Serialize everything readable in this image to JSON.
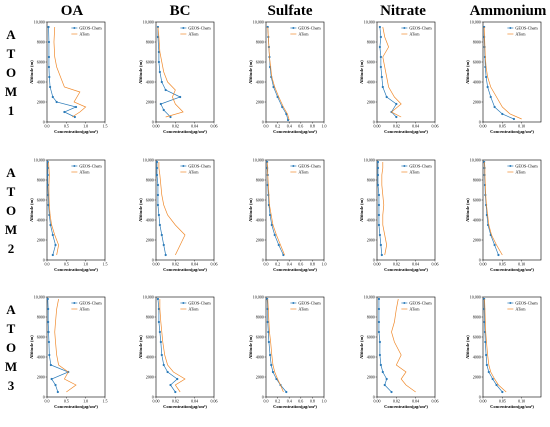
{
  "columns": [
    "OA",
    "BC",
    "Sulfate",
    "Nitrate",
    "Ammonium"
  ],
  "rows": [
    "ATOM1",
    "ATOM2",
    "ATOM3"
  ],
  "legend": [
    "GEOS-Chem",
    "ATom"
  ],
  "colors": {
    "GEOS-Chem": "#2b7bb9",
    "ATom": "#f08a2c"
  },
  "axis_text": {
    "xlabel": "Concentration(μg/sm³)",
    "ylabel": "Altitude (m)"
  },
  "chart_data": {
    "type": "line",
    "yticks": [
      "0",
      "2000",
      "4000",
      "6000",
      "8000",
      "10,000"
    ],
    "ylim": [
      0,
      10000
    ],
    "xticks": {
      "OA": [
        "0.0",
        "0.5",
        "1.0",
        "1.5"
      ],
      "BC": [
        "0.00",
        "0.02",
        "0.04",
        "0.06"
      ],
      "Sulfate": [
        "0.0",
        "0.2",
        "0.4",
        "0.6",
        "0.8",
        "1.0"
      ],
      "Nitrate": [
        "0.00",
        "0.02",
        "0.04",
        "0.06"
      ],
      "Ammonium": [
        "0.00",
        "0.05",
        "0.10"
      ]
    },
    "xlims": {
      "OA": [
        0,
        1.5
      ],
      "BC": [
        0,
        0.06
      ],
      "Sulfate": [
        0,
        1.0
      ],
      "Nitrate": [
        0,
        0.06
      ],
      "Ammonium": [
        0,
        0.15
      ]
    },
    "panels": [
      {
        "row": "ATOM1",
        "col": "OA",
        "series": [
          {
            "name": "GEOS-Chem",
            "x": [
              0.72,
              0.45,
              0.75,
              0.25,
              0.15,
              0.08,
              0.06,
              0.05,
              0.05,
              0.05,
              0.04
            ],
            "y": [
              500,
              1000,
              1500,
              2000,
              2500,
              3500,
              4500,
              5500,
              6500,
              8000,
              9500
            ]
          },
          {
            "name": "ATom",
            "x": [
              0.65,
              0.85,
              1.0,
              0.7,
              0.85,
              0.45,
              0.35,
              0.25,
              0.2,
              0.18,
              0.2
            ],
            "y": [
              500,
              1000,
              1500,
              2000,
              3000,
              3500,
              4500,
              5500,
              6500,
              8000,
              9500
            ]
          }
        ]
      },
      {
        "row": "ATOM1",
        "col": "BC",
        "series": [
          {
            "name": "GEOS-Chem",
            "x": [
              0.015,
              0.008,
              0.005,
              0.025,
              0.01,
              0.006,
              0.004,
              0.003,
              0.003,
              0.002,
              0.002
            ],
            "y": [
              500,
              1200,
              1800,
              2500,
              3200,
              4000,
              5000,
              6000,
              7000,
              8500,
              9500
            ]
          },
          {
            "name": "ATom",
            "x": [
              0.01,
              0.028,
              0.02,
              0.017,
              0.02,
              0.012,
              0.008,
              0.006,
              0.004,
              0.003,
              0.002
            ],
            "y": [
              500,
              1000,
              1800,
              2500,
              3200,
              4000,
              5000,
              6000,
              7000,
              8500,
              9500
            ]
          }
        ]
      },
      {
        "row": "ATOM1",
        "col": "Sulfate",
        "series": [
          {
            "name": "GEOS-Chem",
            "x": [
              0.38,
              0.35,
              0.28,
              0.2,
              0.13,
              0.09,
              0.07,
              0.06,
              0.05,
              0.04,
              0.03
            ],
            "y": [
              200,
              800,
              1500,
              2500,
              3500,
              4500,
              5500,
              6500,
              7500,
              8500,
              9500
            ]
          },
          {
            "name": "ATom",
            "x": [
              0.4,
              0.37,
              0.3,
              0.22,
              0.15,
              0.1,
              0.08,
              0.06,
              0.05,
              0.04,
              0.03
            ],
            "y": [
              200,
              800,
              1500,
              2500,
              3500,
              4500,
              5500,
              6500,
              7500,
              8500,
              9500
            ]
          }
        ]
      },
      {
        "row": "ATOM1",
        "col": "Nitrate",
        "series": [
          {
            "name": "GEOS-Chem",
            "x": [
              0.02,
              0.015,
              0.02,
              0.01,
              0.006,
              0.005,
              0.004,
              0.004,
              0.003,
              0.004,
              0.003
            ],
            "y": [
              500,
              1000,
              1800,
              2500,
              3500,
              4500,
              5500,
              6500,
              7500,
              8500,
              9500
            ]
          },
          {
            "name": "ATom",
            "x": [
              0.025,
              0.015,
              0.025,
              0.018,
              0.012,
              0.01,
              0.008,
              0.006,
              0.012,
              0.008,
              0.006
            ],
            "y": [
              500,
              1000,
              1800,
              2500,
              3500,
              4500,
              5500,
              6500,
              7500,
              8500,
              9500
            ]
          }
        ]
      },
      {
        "row": "ATOM1",
        "col": "Ammonium",
        "series": [
          {
            "name": "GEOS-Chem",
            "x": [
              0.08,
              0.05,
              0.03,
              0.02,
              0.012,
              0.008,
              0.006,
              0.005,
              0.004,
              0.003,
              0.003
            ],
            "y": [
              300,
              800,
              1500,
              2500,
              3500,
              4500,
              5500,
              6500,
              7500,
              8500,
              9500
            ]
          },
          {
            "name": "ATom",
            "x": [
              0.1,
              0.07,
              0.05,
              0.035,
              0.02,
              0.012,
              0.008,
              0.006,
              0.005,
              0.004,
              0.003
            ],
            "y": [
              300,
              800,
              1500,
              2500,
              3500,
              4500,
              5500,
              6500,
              7500,
              8500,
              9500
            ]
          }
        ]
      },
      {
        "row": "ATOM2",
        "col": "OA",
        "series": [
          {
            "name": "GEOS-Chem",
            "x": [
              0.15,
              0.22,
              0.15,
              0.09,
              0.06,
              0.04,
              0.03,
              0.02,
              0.02,
              0.02,
              0.02
            ],
            "y": [
              500,
              1500,
              2500,
              3500,
              4500,
              5500,
              6500,
              7500,
              8500,
              9200,
              9800
            ]
          },
          {
            "name": "ATom",
            "x": [
              0.25,
              0.3,
              0.2,
              0.12,
              0.08,
              0.06,
              0.05,
              0.05,
              0.06,
              0.05,
              0.04
            ],
            "y": [
              500,
              1500,
              2500,
              3500,
              4500,
              5500,
              6500,
              7500,
              8500,
              9200,
              9800
            ]
          }
        ]
      },
      {
        "row": "ATOM2",
        "col": "BC",
        "series": [
          {
            "name": "GEOS-Chem",
            "x": [
              0.01,
              0.008,
              0.006,
              0.004,
              0.003,
              0.002,
              0.002,
              0.002,
              0.001,
              0.001,
              0.001
            ],
            "y": [
              500,
              1500,
              2500,
              3500,
              4500,
              5500,
              6500,
              7500,
              8500,
              9200,
              9800
            ]
          },
          {
            "name": "ATom",
            "x": [
              0.02,
              0.025,
              0.03,
              0.02,
              0.012,
              0.008,
              0.006,
              0.005,
              0.004,
              0.003,
              0.003
            ],
            "y": [
              500,
              1500,
              2500,
              3500,
              4500,
              5500,
              6500,
              7500,
              8500,
              9200,
              9800
            ]
          }
        ]
      },
      {
        "row": "ATOM2",
        "col": "Sulfate",
        "series": [
          {
            "name": "GEOS-Chem",
            "x": [
              0.3,
              0.22,
              0.15,
              0.1,
              0.07,
              0.05,
              0.04,
              0.03,
              0.03,
              0.02,
              0.02
            ],
            "y": [
              500,
              1500,
              2500,
              3500,
              4500,
              5500,
              6500,
              7500,
              8500,
              9200,
              9800
            ]
          },
          {
            "name": "ATom",
            "x": [
              0.32,
              0.25,
              0.18,
              0.12,
              0.09,
              0.06,
              0.05,
              0.04,
              0.03,
              0.03,
              0.02
            ],
            "y": [
              500,
              1500,
              2500,
              3500,
              4500,
              5500,
              6500,
              7500,
              8500,
              9200,
              9800
            ]
          }
        ]
      },
      {
        "row": "ATOM2",
        "col": "Nitrate",
        "series": [
          {
            "name": "GEOS-Chem",
            "x": [
              0.005,
              0.004,
              0.003,
              0.002,
              0.002,
              0.002,
              0.002,
              0.001,
              0.001,
              0.001,
              0.001
            ],
            "y": [
              500,
              1500,
              2500,
              3500,
              4500,
              5500,
              6500,
              7500,
              8500,
              9200,
              9800
            ]
          },
          {
            "name": "ATom",
            "x": [
              0.008,
              0.01,
              0.008,
              0.006,
              0.006,
              0.007,
              0.006,
              0.005,
              0.005,
              0.006,
              0.006
            ],
            "y": [
              500,
              1500,
              2500,
              3500,
              4500,
              5500,
              6500,
              7500,
              8500,
              9200,
              9800
            ]
          }
        ]
      },
      {
        "row": "ATOM2",
        "col": "Ammonium",
        "series": [
          {
            "name": "GEOS-Chem",
            "x": [
              0.04,
              0.03,
              0.02,
              0.013,
              0.01,
              0.008,
              0.006,
              0.005,
              0.004,
              0.004,
              0.003
            ],
            "y": [
              500,
              1500,
              2500,
              3500,
              4500,
              5500,
              6500,
              7500,
              8500,
              9200,
              9800
            ]
          },
          {
            "name": "ATom",
            "x": [
              0.05,
              0.035,
              0.022,
              0.015,
              0.012,
              0.009,
              0.007,
              0.006,
              0.005,
              0.005,
              0.004
            ],
            "y": [
              500,
              1500,
              2500,
              3500,
              4500,
              5500,
              6500,
              7500,
              8500,
              9200,
              9800
            ]
          }
        ]
      },
      {
        "row": "ATOM3",
        "col": "OA",
        "series": [
          {
            "name": "GEOS-Chem",
            "x": [
              0.28,
              0.22,
              0.12,
              0.55,
              0.1,
              0.06,
              0.05,
              0.04,
              0.03,
              0.03,
              0.02
            ],
            "y": [
              500,
              1200,
              1800,
              2500,
              3200,
              4200,
              5500,
              6500,
              7500,
              8800,
              9800
            ]
          },
          {
            "name": "ATom",
            "x": [
              0.5,
              0.75,
              0.45,
              0.55,
              0.3,
              0.25,
              0.22,
              0.2,
              0.22,
              0.25,
              0.3
            ],
            "y": [
              500,
              1200,
              1800,
              2500,
              3200,
              4200,
              5500,
              6500,
              7500,
              8800,
              9800
            ]
          }
        ]
      },
      {
        "row": "ATOM3",
        "col": "BC",
        "series": [
          {
            "name": "GEOS-Chem",
            "x": [
              0.02,
              0.015,
              0.022,
              0.012,
              0.008,
              0.006,
              0.005,
              0.004,
              0.003,
              0.003,
              0.002
            ],
            "y": [
              500,
              1200,
              1800,
              2500,
              3200,
              4200,
              5500,
              6500,
              7500,
              8800,
              9800
            ]
          },
          {
            "name": "ATom",
            "x": [
              0.025,
              0.02,
              0.03,
              0.018,
              0.012,
              0.009,
              0.007,
              0.006,
              0.005,
              0.004,
              0.004
            ],
            "y": [
              500,
              1200,
              1800,
              2500,
              3200,
              4200,
              5500,
              6500,
              7500,
              8800,
              9800
            ]
          }
        ]
      },
      {
        "row": "ATOM3",
        "col": "Sulfate",
        "series": [
          {
            "name": "GEOS-Chem",
            "x": [
              0.35,
              0.25,
              0.18,
              0.12,
              0.09,
              0.07,
              0.05,
              0.04,
              0.03,
              0.03,
              0.02
            ],
            "y": [
              500,
              1200,
              1800,
              2500,
              3200,
              4200,
              5500,
              6500,
              7500,
              8800,
              9800
            ]
          },
          {
            "name": "ATom",
            "x": [
              0.3,
              0.25,
              0.2,
              0.15,
              0.12,
              0.1,
              0.08,
              0.06,
              0.05,
              0.04,
              0.03
            ],
            "y": [
              500,
              1200,
              1800,
              2500,
              3200,
              4200,
              5500,
              6500,
              7500,
              8800,
              9800
            ]
          }
        ]
      },
      {
        "row": "ATOM3",
        "col": "Nitrate",
        "series": [
          {
            "name": "GEOS-Chem",
            "x": [
              0.015,
              0.008,
              0.01,
              0.006,
              0.004,
              0.003,
              0.003,
              0.002,
              0.002,
              0.002,
              0.002
            ],
            "y": [
              500,
              1200,
              1800,
              2500,
              3200,
              4200,
              5500,
              6500,
              7500,
              8800,
              9800
            ]
          },
          {
            "name": "ATom",
            "x": [
              0.04,
              0.03,
              0.025,
              0.03,
              0.02,
              0.025,
              0.018,
              0.015,
              0.018,
              0.02,
              0.022
            ],
            "y": [
              500,
              1200,
              1800,
              2500,
              3200,
              4200,
              5500,
              6500,
              7500,
              8800,
              9800
            ]
          }
        ]
      },
      {
        "row": "ATOM3",
        "col": "Ammonium",
        "series": [
          {
            "name": "GEOS-Chem",
            "x": [
              0.05,
              0.035,
              0.025,
              0.015,
              0.01,
              0.008,
              0.006,
              0.005,
              0.004,
              0.003,
              0.003
            ],
            "y": [
              500,
              1200,
              1800,
              2500,
              3200,
              4200,
              5500,
              6500,
              7500,
              8800,
              9800
            ]
          },
          {
            "name": "ATom",
            "x": [
              0.06,
              0.04,
              0.03,
              0.02,
              0.015,
              0.012,
              0.009,
              0.007,
              0.006,
              0.005,
              0.004
            ],
            "y": [
              500,
              1200,
              1800,
              2500,
              3200,
              4200,
              5500,
              6500,
              7500,
              8800,
              9800
            ]
          }
        ]
      }
    ]
  }
}
